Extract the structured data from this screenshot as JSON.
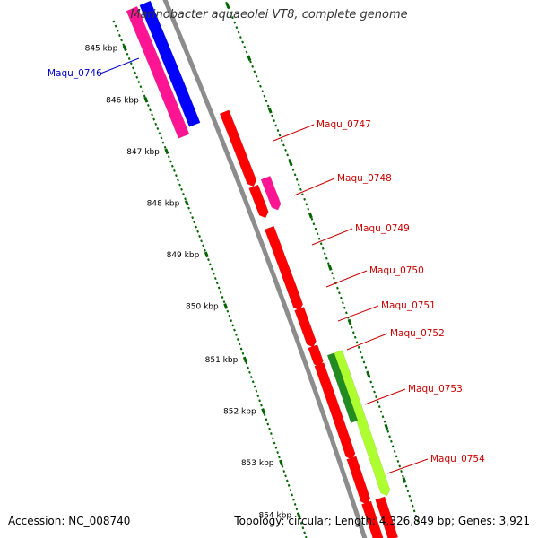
{
  "title": "Marinobacter aquaeolei VT8, complete genome",
  "footer": {
    "accession": "Accession: NC_008740",
    "summary": "Topology: circular; Length: 4,326,849 bp; Genes: 3,921"
  },
  "colors": {
    "backbone": "#8c8c8c",
    "red_gene": "#ff0000",
    "magenta_gene": "#ff1493",
    "blue_gene": "#0000ff",
    "green_light": "#adff2f",
    "green_dark": "#228b22",
    "tick": "#006400",
    "label_red": "#cc0000",
    "label_blue": "#0000cc"
  },
  "ruler": {
    "ticks": [
      "845 kbp",
      "846 kbp",
      "847 kbp",
      "848 kbp",
      "849 kbp",
      "850 kbp",
      "851 kbp",
      "852 kbp",
      "853 kbp",
      "854 kbp"
    ]
  },
  "gene_labels": [
    {
      "text": "Maqu_0746",
      "color": "blue"
    },
    {
      "text": "Maqu_0747",
      "color": "red"
    },
    {
      "text": "Maqu_0748",
      "color": "red"
    },
    {
      "text": "Maqu_0749",
      "color": "red"
    },
    {
      "text": "Maqu_0750",
      "color": "red"
    },
    {
      "text": "Maqu_0751",
      "color": "red"
    },
    {
      "text": "Maqu_0752",
      "color": "red"
    },
    {
      "text": "Maqu_0753",
      "color": "red"
    },
    {
      "text": "Maqu_0754",
      "color": "red"
    }
  ]
}
